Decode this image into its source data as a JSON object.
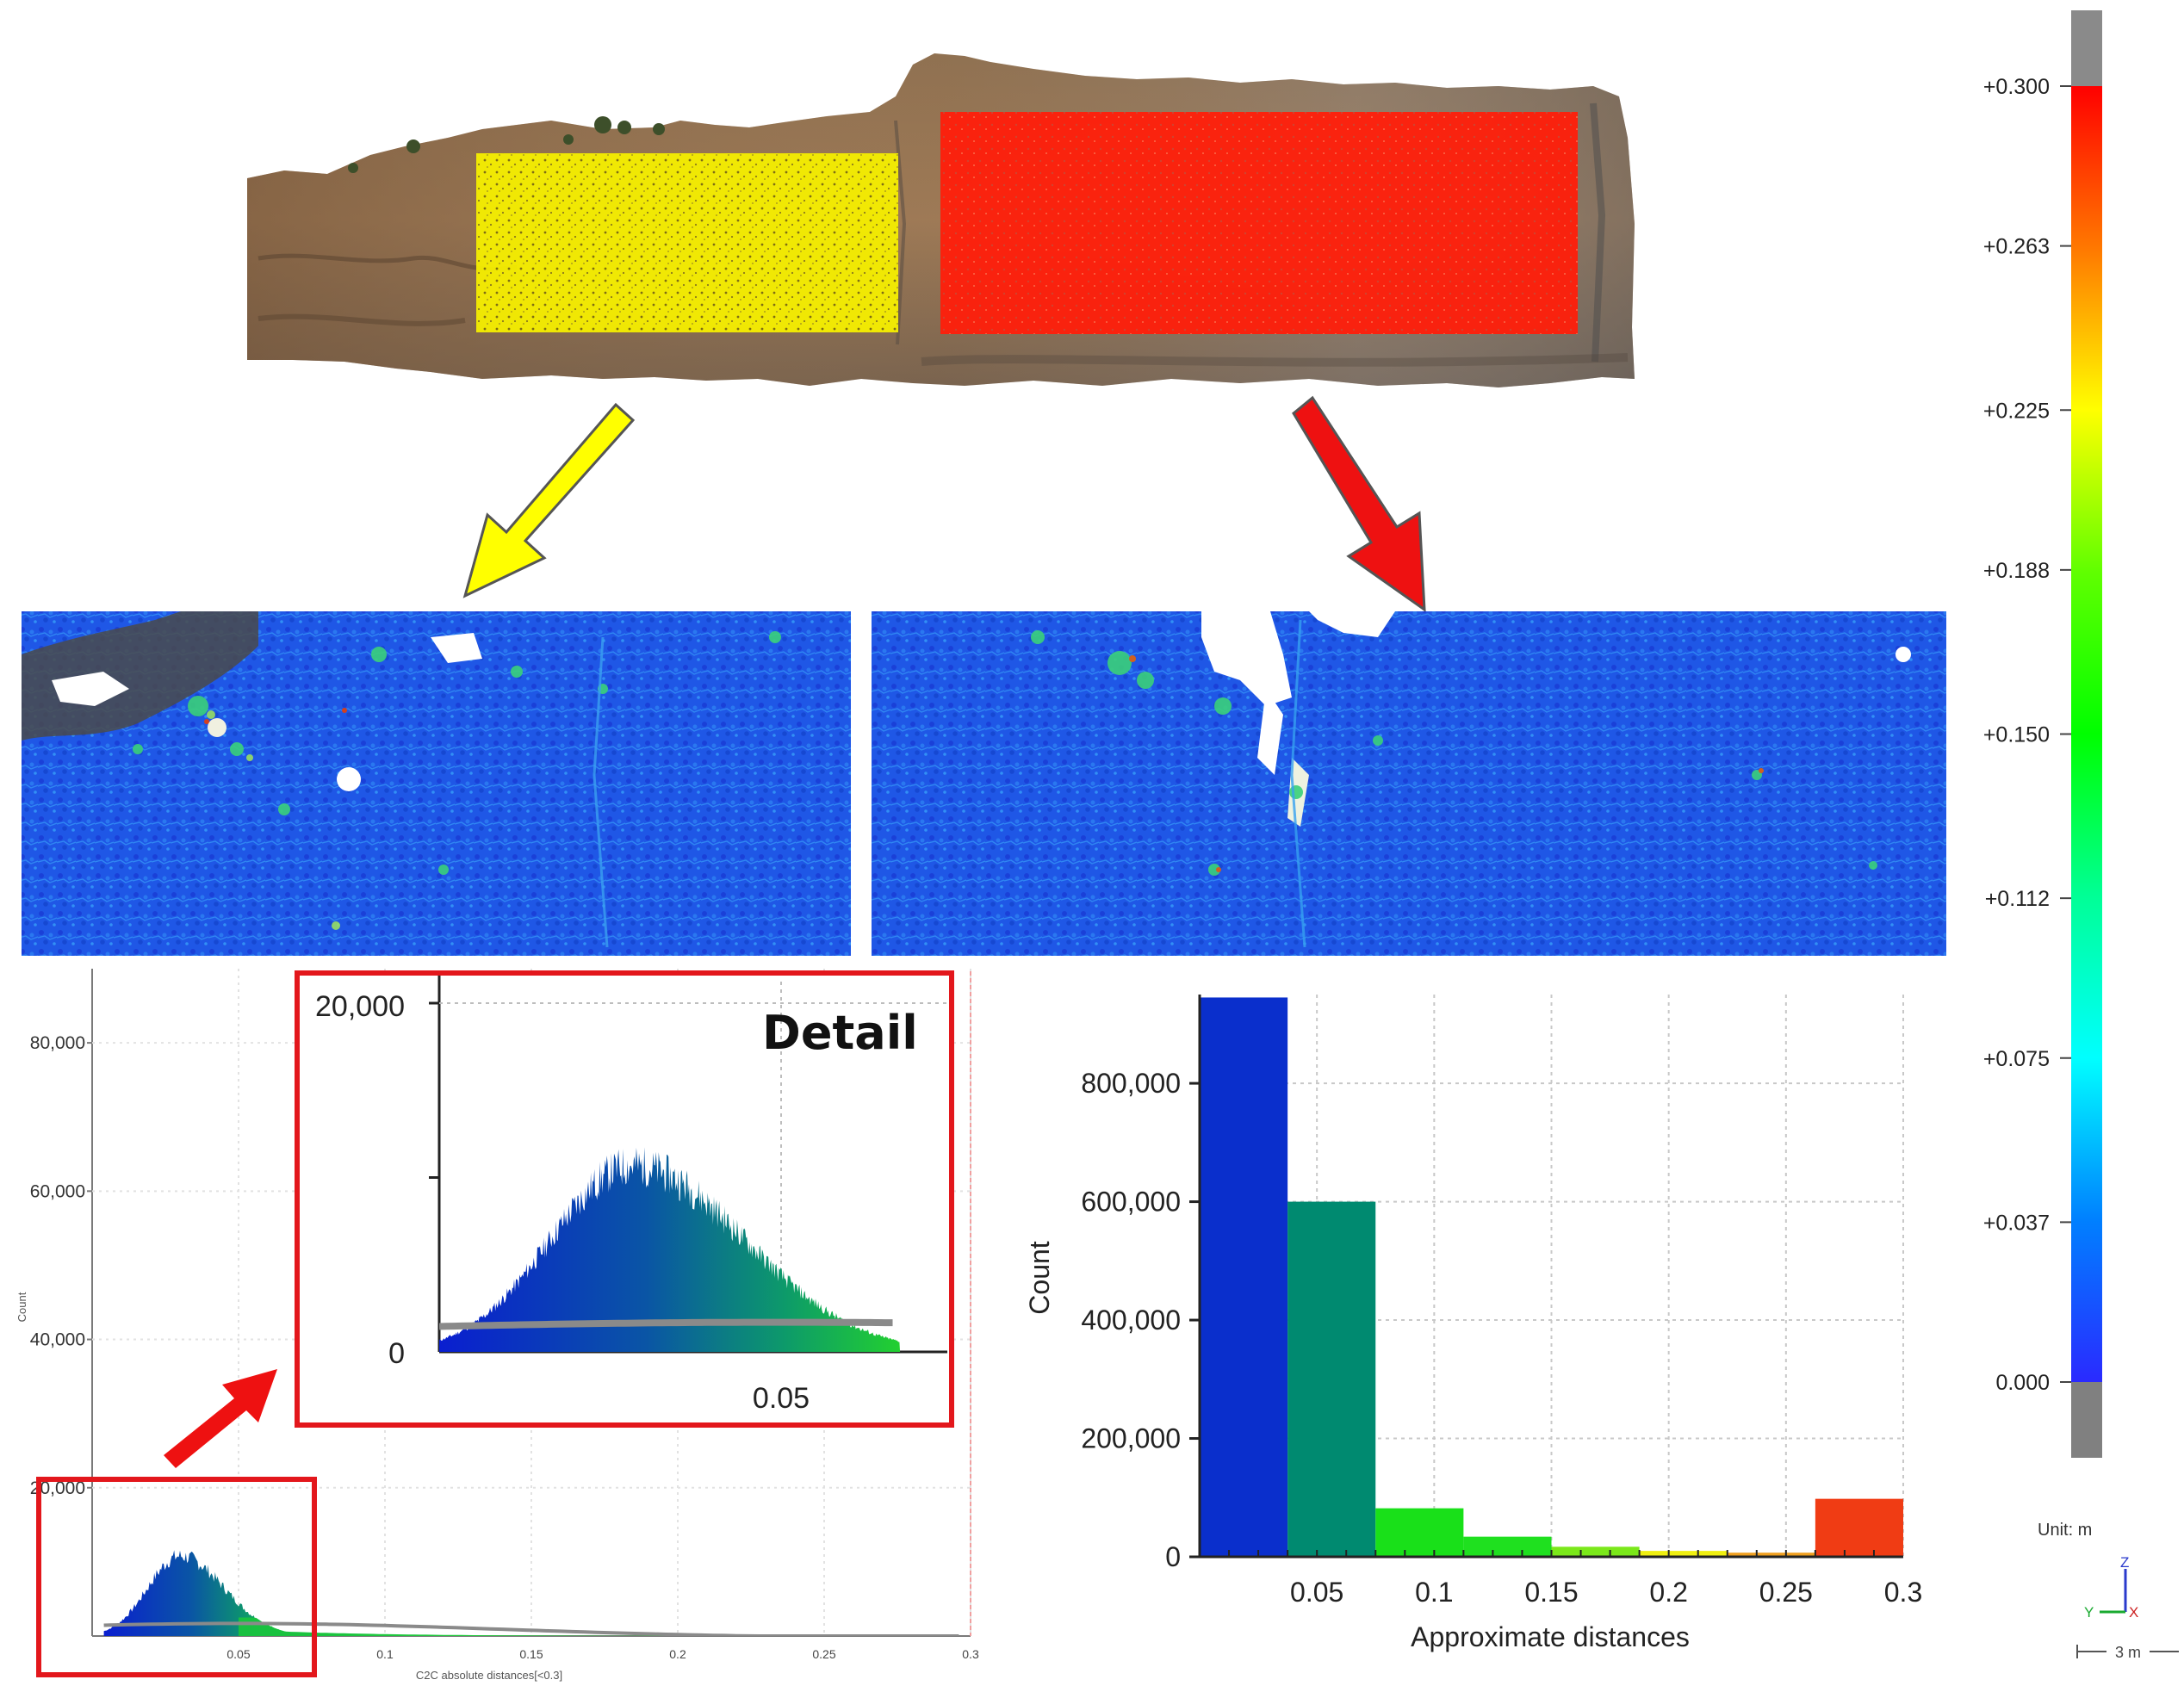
{
  "colorbar": {
    "ticks": [
      "+0.300",
      "+0.263",
      "+0.225",
      "+0.188",
      "+0.150",
      "+0.112",
      "+0.075",
      "+0.037",
      "0.000"
    ],
    "unit_label": "Unit: m",
    "scale_label": "3 m",
    "axis_x": "X",
    "axis_y": "Y",
    "axis_z": "Z"
  },
  "colors": {
    "highlight_yellow": "#f5ee00",
    "highlight_red": "#ff1a0a",
    "arrow_yellow": "#ffff00",
    "arrow_red": "#ee1111",
    "detail_frame": "#e3171c"
  },
  "detail": {
    "title": "Detail",
    "y_top": "20,000",
    "y_zero": "0",
    "x_label": "0.05"
  },
  "chart_data": [
    {
      "type": "bar",
      "ylabel": "Count",
      "xlabel": "C2C absolute distances[<0.3]",
      "xlim": [
        0,
        0.3
      ],
      "ylim": [
        0,
        90000
      ],
      "x_ticks": [
        "0.05",
        "0.1",
        "0.15",
        "0.2",
        "0.25",
        "0.3"
      ],
      "y_ticks": [
        "20,000",
        "40,000",
        "60,000",
        "80,000"
      ],
      "histogram_peak": {
        "x": 0.03,
        "y": 11000
      }
    },
    {
      "type": "bar",
      "ylabel": "Count",
      "xlabel": "Approximate distances",
      "xlim": [
        0,
        0.3
      ],
      "ylim": [
        0,
        950000
      ],
      "x_ticks": [
        "0.05",
        "0.1",
        "0.15",
        "0.2",
        "0.25",
        "0.3"
      ],
      "y_ticks": [
        "0",
        "200,000",
        "400,000",
        "600,000",
        "800,000"
      ],
      "bins": [
        {
          "x0": 0.0,
          "x1": 0.0375,
          "value": 945000,
          "color": "#0a2fcc"
        },
        {
          "x0": 0.0375,
          "x1": 0.075,
          "value": 600000,
          "color": "#008a70"
        },
        {
          "x0": 0.075,
          "x1": 0.1125,
          "value": 82000,
          "color": "#19e019"
        },
        {
          "x0": 0.1125,
          "x1": 0.15,
          "value": 34000,
          "color": "#1fe01f"
        },
        {
          "x0": 0.15,
          "x1": 0.1875,
          "value": 17000,
          "color": "#7be81a"
        },
        {
          "x0": 0.1875,
          "x1": 0.225,
          "value": 10000,
          "color": "#f0f010"
        },
        {
          "x0": 0.225,
          "x1": 0.2625,
          "value": 7000,
          "color": "#f0a020"
        },
        {
          "x0": 0.2625,
          "x1": 0.3,
          "value": 98000,
          "color": "#f03c14"
        }
      ]
    }
  ]
}
